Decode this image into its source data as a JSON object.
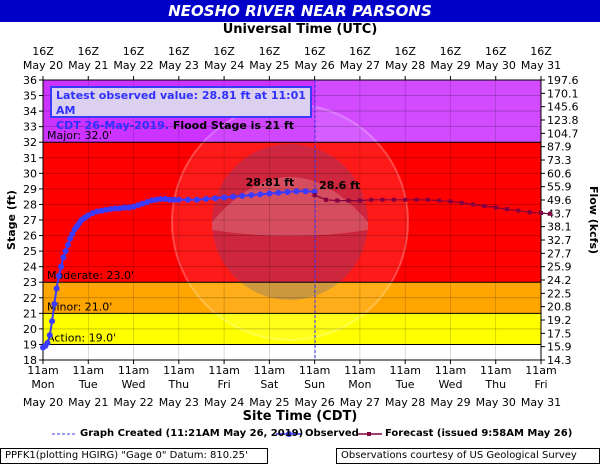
{
  "header": {
    "title": "NEOSHO RIVER NEAR PARSONS"
  },
  "top_axis_title": "Universal Time (UTC)",
  "bottom_axis_title": "Site Time (CDT)",
  "annotation": {
    "line1": "Latest observed value: 28.81 ft at 11:01 AM",
    "line2_blue": "CDT 26-May-2019.",
    "line2_black": " Flood Stage is 21 ft"
  },
  "legend": {
    "graph_created": "Graph Created (11:21AM May 26, 2019)",
    "observed": "Observed",
    "forecast": "Forecast (issued 9:58AM May 26)"
  },
  "footer": {
    "left": "PPFK1(plotting HGIRG) \"Gage 0\" Datum: 810.25'",
    "right": "Observations courtesy of US Geological Survey"
  },
  "watermark": "U.S. DEPARTMENT OF COMMERCE / NATIONAL OCEANIC AND ATMOSPHERIC ADMINISTRATION",
  "chart_data": {
    "type": "line",
    "title": "NEOSHO RIVER NEAR PARSONS",
    "ylabel": "Stage (ft)",
    "y2label": "Flow (kcfs)",
    "xlabel": "Site Time (CDT)",
    "x2label": "Universal Time (UTC)",
    "ylim": [
      18,
      36
    ],
    "y_ticks": [
      18,
      19,
      20,
      21,
      22,
      23,
      24,
      25,
      26,
      27,
      28,
      29,
      30,
      31,
      32,
      33,
      34,
      35,
      36
    ],
    "y2_ticks": [
      "14.3",
      "15.9",
      "17.5",
      "19.2",
      "20.8",
      "22.5",
      "24.2",
      "25.9",
      "27.7",
      "32.7",
      "38.1",
      "43.7",
      "49.6",
      "55.9",
      "60.6",
      "73.3",
      "87.9",
      "104.7",
      "123.8",
      "145.6",
      "170.1",
      "197.6"
    ],
    "x_ticks_bottom": [
      {
        "line1": "11am",
        "line2": "Mon",
        "line3": "May 20"
      },
      {
        "line1": "11am",
        "line2": "Tue",
        "line3": "May 21"
      },
      {
        "line1": "11am",
        "line2": "Wed",
        "line3": "May 22"
      },
      {
        "line1": "11am",
        "line2": "Thu",
        "line3": "May 23"
      },
      {
        "line1": "11am",
        "line2": "Fri",
        "line3": "May 24"
      },
      {
        "line1": "11am",
        "line2": "Sat",
        "line3": "May 25"
      },
      {
        "line1": "11am",
        "line2": "Sun",
        "line3": "May 26"
      },
      {
        "line1": "11am",
        "line2": "Mon",
        "line3": "May 27"
      },
      {
        "line1": "11am",
        "line2": "Tue",
        "line3": "May 28"
      },
      {
        "line1": "11am",
        "line2": "Wed",
        "line3": "May 29"
      },
      {
        "line1": "11am",
        "line2": "Thu",
        "line3": "May 30"
      },
      {
        "line1": "11am",
        "line2": "Fri",
        "line3": "May 31"
      }
    ],
    "x_ticks_top": [
      {
        "line1": "16Z",
        "line2": "May 20"
      },
      {
        "line1": "16Z",
        "line2": "May 21"
      },
      {
        "line1": "16Z",
        "line2": "May 22"
      },
      {
        "line1": "16Z",
        "line2": "May 23"
      },
      {
        "line1": "16Z",
        "line2": "May 24"
      },
      {
        "line1": "16Z",
        "line2": "May 25"
      },
      {
        "line1": "16Z",
        "line2": "May 26"
      },
      {
        "line1": "16Z",
        "line2": "May 27"
      },
      {
        "line1": "16Z",
        "line2": "May 28"
      },
      {
        "line1": "16Z",
        "line2": "May 29"
      },
      {
        "line1": "16Z",
        "line2": "May 30"
      },
      {
        "line1": "16Z",
        "line2": "May 31"
      }
    ],
    "bands": [
      {
        "name": "Action",
        "label": "Action: 19.0'",
        "from": 19,
        "to": 21,
        "color": "#ffff00"
      },
      {
        "name": "Minor",
        "label": "Minor: 21.0'",
        "from": 21,
        "to": 23,
        "color": "#ffa500"
      },
      {
        "name": "Moderate",
        "label": "Moderate: 23.0'",
        "from": 23,
        "to": 32,
        "color": "#ff0000"
      },
      {
        "name": "Major",
        "label": "Major: 32.0'",
        "from": 32,
        "to": 36,
        "color": "#cc33ff"
      }
    ],
    "graph_created_day": 6.01,
    "series": [
      {
        "name": "Observed",
        "color": "#3b3bff",
        "points": [
          [
            0.0,
            18.8
          ],
          [
            0.05,
            18.9
          ],
          [
            0.1,
            19.1
          ],
          [
            0.15,
            19.6
          ],
          [
            0.2,
            20.5
          ],
          [
            0.25,
            21.6
          ],
          [
            0.3,
            22.6
          ],
          [
            0.35,
            23.4
          ],
          [
            0.4,
            24.0
          ],
          [
            0.45,
            24.6
          ],
          [
            0.5,
            25.0
          ],
          [
            0.55,
            25.4
          ],
          [
            0.6,
            25.8
          ],
          [
            0.65,
            26.1
          ],
          [
            0.7,
            26.4
          ],
          [
            0.75,
            26.6
          ],
          [
            0.8,
            26.8
          ],
          [
            0.85,
            27.0
          ],
          [
            0.9,
            27.1
          ],
          [
            0.95,
            27.2
          ],
          [
            1.0,
            27.3
          ],
          [
            1.1,
            27.45
          ],
          [
            1.2,
            27.55
          ],
          [
            1.3,
            27.6
          ],
          [
            1.4,
            27.65
          ],
          [
            1.5,
            27.7
          ],
          [
            1.6,
            27.75
          ],
          [
            1.7,
            27.75
          ],
          [
            1.8,
            27.8
          ],
          [
            1.9,
            27.8
          ],
          [
            2.0,
            27.85
          ],
          [
            2.1,
            27.95
          ],
          [
            2.2,
            28.05
          ],
          [
            2.3,
            28.15
          ],
          [
            2.4,
            28.25
          ],
          [
            2.5,
            28.3
          ],
          [
            2.6,
            28.35
          ],
          [
            2.7,
            28.35
          ],
          [
            2.8,
            28.3
          ],
          [
            2.9,
            28.3
          ],
          [
            3.0,
            28.3
          ],
          [
            3.2,
            28.3
          ],
          [
            3.4,
            28.3
          ],
          [
            3.6,
            28.35
          ],
          [
            3.8,
            28.4
          ],
          [
            4.0,
            28.45
          ],
          [
            4.2,
            28.5
          ],
          [
            4.4,
            28.55
          ],
          [
            4.6,
            28.6
          ],
          [
            4.8,
            28.65
          ],
          [
            5.0,
            28.7
          ],
          [
            5.2,
            28.75
          ],
          [
            5.4,
            28.8
          ],
          [
            5.6,
            28.85
          ],
          [
            5.8,
            28.85
          ],
          [
            6.0,
            28.81
          ]
        ]
      },
      {
        "name": "Forecast",
        "color": "#800040",
        "points": [
          [
            6.0,
            28.6
          ],
          [
            6.25,
            28.3
          ],
          [
            6.5,
            28.25
          ],
          [
            6.75,
            28.25
          ],
          [
            7.0,
            28.25
          ],
          [
            7.25,
            28.3
          ],
          [
            7.5,
            28.3
          ],
          [
            7.75,
            28.3
          ],
          [
            8.0,
            28.3
          ],
          [
            8.25,
            28.3
          ],
          [
            8.5,
            28.3
          ],
          [
            8.75,
            28.25
          ],
          [
            9.0,
            28.2
          ],
          [
            9.25,
            28.1
          ],
          [
            9.5,
            28.0
          ],
          [
            9.75,
            27.9
          ],
          [
            10.0,
            27.8
          ],
          [
            10.25,
            27.7
          ],
          [
            10.5,
            27.6
          ],
          [
            10.75,
            27.5
          ],
          [
            11.0,
            27.45
          ],
          [
            11.2,
            27.4
          ]
        ]
      }
    ],
    "point_labels": [
      {
        "text": "28.81 ft",
        "series": "Observed",
        "x": 5.55,
        "y": 28.81,
        "color": "#ffffff"
      },
      {
        "text": "28.6 ft",
        "series": "Forecast",
        "x": 6.1,
        "y": 28.6,
        "color": "#ffffff"
      }
    ]
  }
}
